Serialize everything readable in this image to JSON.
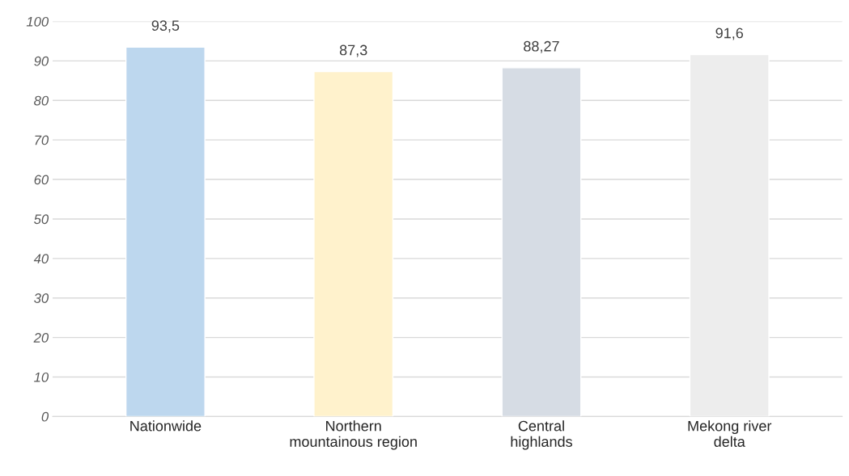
{
  "chart_data": {
    "type": "bar",
    "categories": [
      "Nationwide",
      "Northern\nmountainous region",
      "Central\nhighlands",
      "Mekong river\ndelta"
    ],
    "values": [
      93.5,
      87.3,
      88.27,
      91.6
    ],
    "colors": [
      "#bdd7ee",
      "#fff2cc",
      "#d6dce4",
      "#ededed"
    ],
    "value_labels": [
      "93,5",
      "87,3",
      "88,27",
      "91,6"
    ],
    "ylim": [
      0,
      100
    ],
    "yticks": [
      0,
      10,
      20,
      30,
      40,
      50,
      60,
      70,
      80,
      90,
      100
    ],
    "grid": "y",
    "legend": false
  }
}
